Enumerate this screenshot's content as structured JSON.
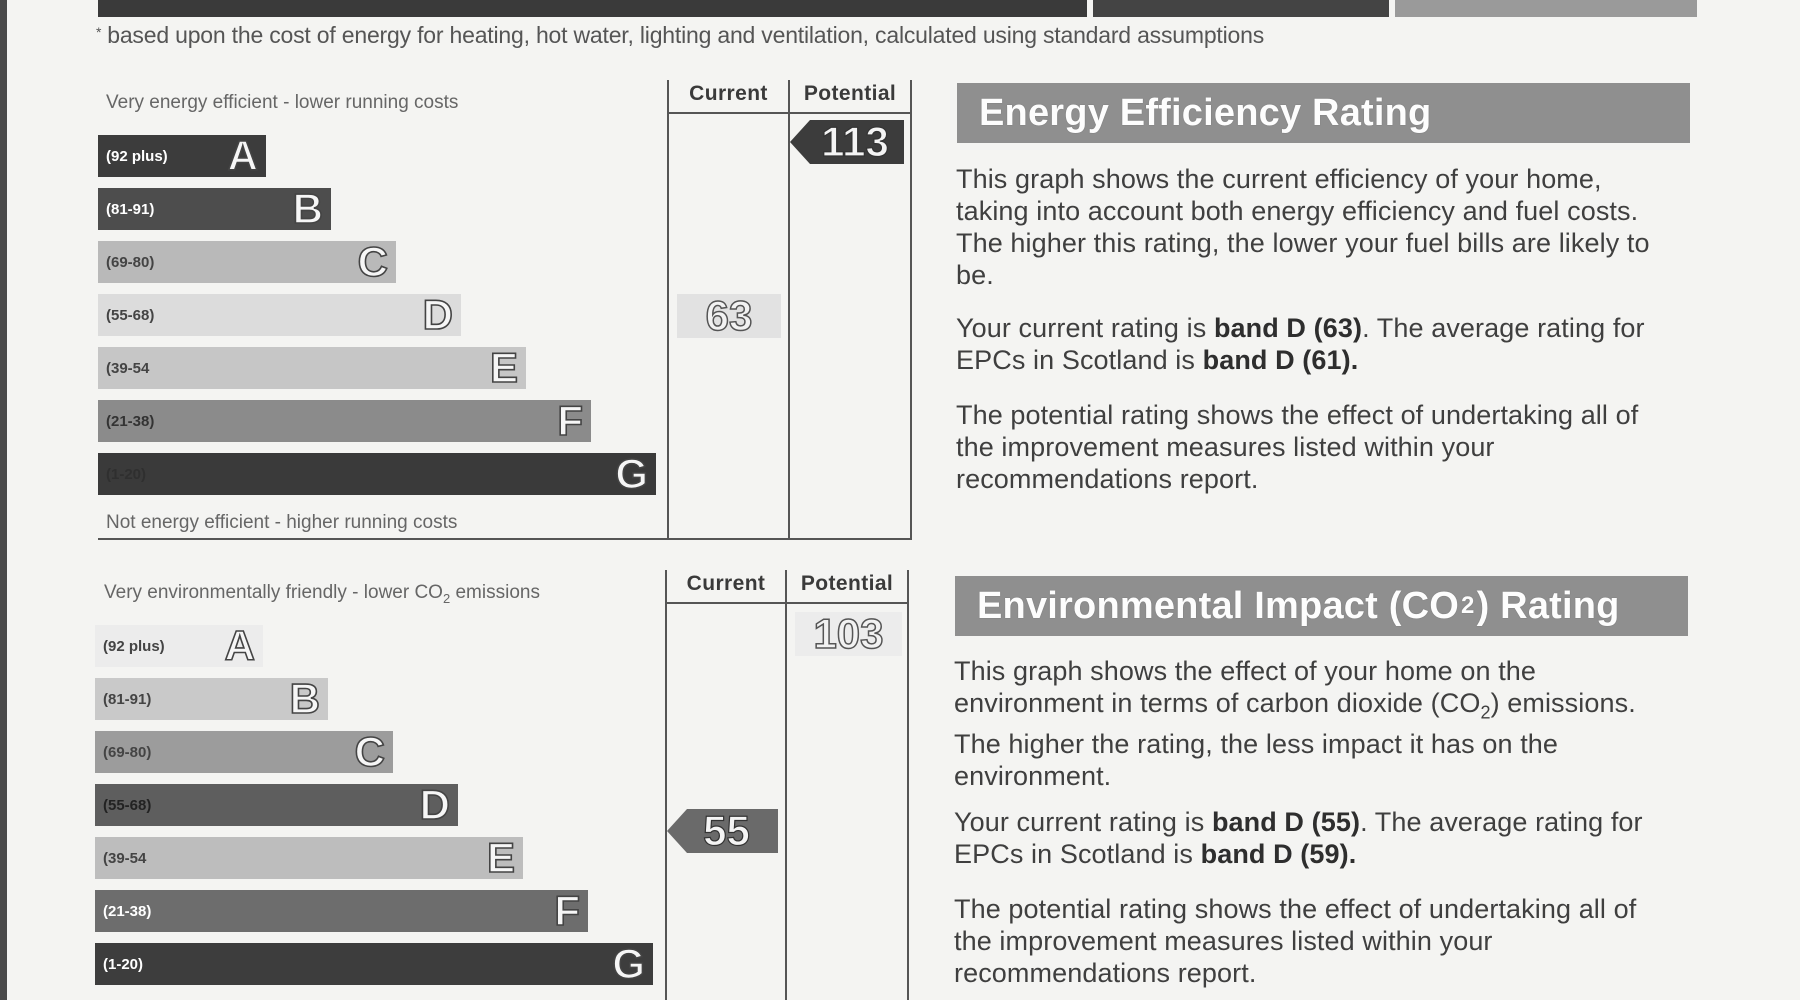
{
  "footnote": "based upon the cost of energy for heating, hot water, lighting and ventilation, calculated using standard assumptions",
  "energy_chart": {
    "col_current": "Current",
    "col_potential": "Potential",
    "top_caption": "Very energy efficient - lower running costs",
    "bottom_caption": "Not energy efficient - higher running costs",
    "bands": [
      {
        "range": "(92 plus)",
        "letter": "A",
        "color": "#3c3c3c",
        "text": "#ffffff"
      },
      {
        "range": "(81-91)",
        "letter": "B",
        "color": "#4d4d4d",
        "text": "#ffffff"
      },
      {
        "range": "(69-80)",
        "letter": "C",
        "color": "#b9b9b9",
        "text": "#444444"
      },
      {
        "range": "(55-68)",
        "letter": "D",
        "color": "#dcdcdc",
        "text": "#444444"
      },
      {
        "range": "(39-54",
        "letter": "E",
        "color": "#c6c6c6",
        "text": "#444444"
      },
      {
        "range": "(21-38)",
        "letter": "F",
        "color": "#8b8b8b",
        "text": "#333333"
      },
      {
        "range": "(1-20)",
        "letter": "G",
        "color": "#3a3a3a",
        "text": "#2f2f2f"
      }
    ],
    "current_value": "63",
    "potential_value": "113"
  },
  "environment_chart": {
    "col_current": "Current",
    "col_potential": "Potential",
    "top_caption": "Very environmentally friendly - lower CO",
    "top_caption_sub": "2",
    "top_caption_tail": " emissions",
    "bands": [
      {
        "range": "(92 plus)",
        "letter": "A",
        "color": "#ececec",
        "text": "#444444"
      },
      {
        "range": "(81-91)",
        "letter": "B",
        "color": "#c9c9c9",
        "text": "#444444"
      },
      {
        "range": "(69-80)",
        "letter": "C",
        "color": "#9c9c9c",
        "text": "#444444"
      },
      {
        "range": "(55-68)",
        "letter": "D",
        "color": "#5e5e5e",
        "text": "#222222"
      },
      {
        "range": "(39-54",
        "letter": "E",
        "color": "#bdbdbd",
        "text": "#444444"
      },
      {
        "range": "(21-38)",
        "letter": "F",
        "color": "#6d6d6d",
        "text": "#ffffff"
      },
      {
        "range": "(1-20)",
        "letter": "G",
        "color": "#3d3d3d",
        "text": "#ffffff"
      }
    ],
    "current_value": "55",
    "potential_value": "103"
  },
  "energy_panel": {
    "title": "Energy Efficiency Rating",
    "p1": "This graph shows the current efficiency of your home, taking into account both energy efficiency and fuel costs. The higher this rating, the lower your fuel bills are likely to be.",
    "p2_a": "Your current rating is ",
    "p2_b": "band D (63)",
    "p2_c": ". The average rating for EPCs in Scotland is ",
    "p2_d": "band D (61).",
    "p3": "The potential rating shows the effect of undertaking all of the improvement measures listed within your recommendations report."
  },
  "environment_panel": {
    "title_a": "Environmental Impact (CO",
    "title_sub": "2",
    "title_b": ") Rating",
    "p1_a": "This graph shows the effect of your home on the environment in terms of carbon dioxide (CO",
    "p1_sub": "2",
    "p1_b": ") emissions. The higher the rating, the less impact it has on the environment.",
    "p2_a": "Your current rating is ",
    "p2_b": "band D (55)",
    "p2_c": ". The average rating for EPCs in Scotland is ",
    "p2_d": "band D (59).",
    "p3": "The potential rating shows the effect of undertaking all of the improvement measures listed within your recommendations report."
  },
  "colors": {
    "panel_header": "#8f8f8f",
    "current_marker_energy": "#e2e2e2",
    "potential_marker_energy": "#3c3c3c",
    "current_marker_env": "#6a6a6a",
    "potential_marker_env": "#ececec"
  }
}
